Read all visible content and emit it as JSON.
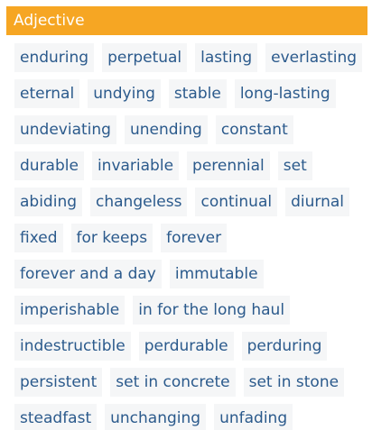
{
  "header": {
    "title": "Adjective"
  },
  "words": [
    [
      "enduring",
      "perpetual",
      "lasting",
      "everlasting"
    ],
    [
      "eternal",
      "undying",
      "stable",
      "long-lasting"
    ],
    [
      "undeviating",
      "unending",
      "constant"
    ],
    [
      "durable",
      "invariable",
      "perennial",
      "set"
    ],
    [
      "abiding",
      "changeless",
      "continual",
      "diurnal"
    ],
    [
      "fixed",
      "for keeps",
      "forever"
    ],
    [
      "forever and a day",
      "immutable"
    ],
    [
      "imperishable",
      "in for the long haul"
    ],
    [
      "indestructible",
      "perdurable",
      "perduring"
    ],
    [
      "persistent",
      "set in concrete",
      "set in stone"
    ],
    [
      "steadfast",
      "unchanging",
      "unfading"
    ]
  ]
}
